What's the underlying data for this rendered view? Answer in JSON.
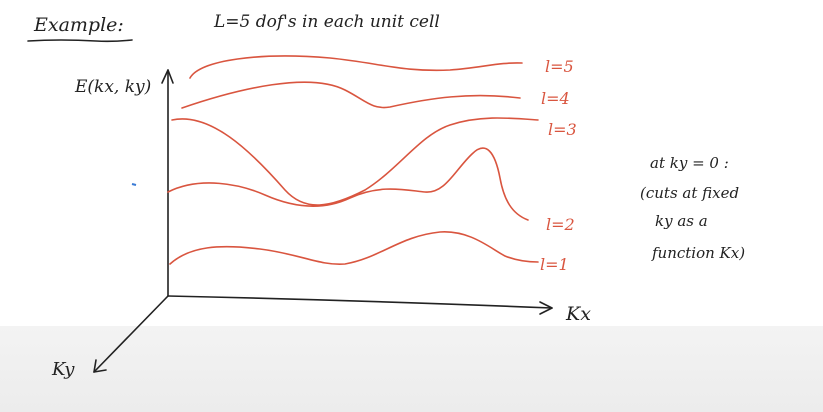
{
  "heading": {
    "example_label": "Example:",
    "setup_text": "L=5   dof's    in   each    unit   cell"
  },
  "axes": {
    "energy_label": "E(kx, ky)",
    "kx_label": "Kx",
    "ky_label": "Ky"
  },
  "bands": [
    {
      "label": "l=5"
    },
    {
      "label": "l=4"
    },
    {
      "label": "l=3"
    },
    {
      "label": "l=2"
    },
    {
      "label": "l=1"
    }
  ],
  "note": {
    "line1": "at  ky = 0 :",
    "line2": "(cuts  at  fixed",
    "line3": "ky   as   a",
    "line4": "function  Kx)"
  },
  "colors": {
    "ink": "#222222",
    "band": "#d9553f",
    "marker": "#3a7bd5"
  }
}
